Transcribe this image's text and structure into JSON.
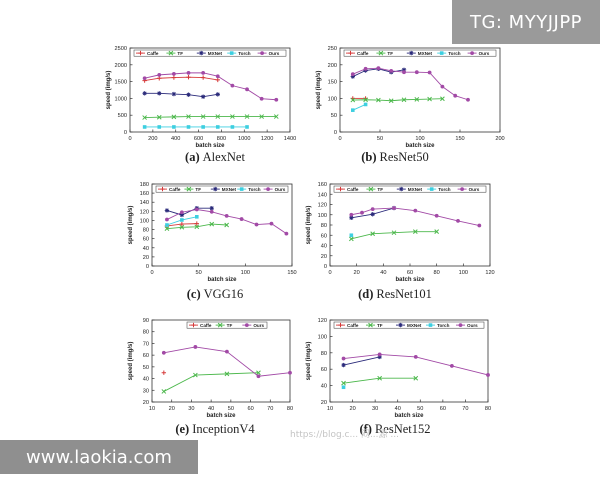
{
  "watermarks": {
    "top_right": "TG: MYYJJPP",
    "bottom_left": "www.laokia.com",
    "blog": "https://blog.c... 闷...源 ..."
  },
  "colors": {
    "Caffe": "#d63a3a",
    "TF": "#4cb84c",
    "MXNet": "#2a2a7a",
    "Torch": "#3dcfe0",
    "Ours": "#a24aa6"
  },
  "chart_data": [
    {
      "type": "line",
      "id": "alexnet",
      "caption_id": "(a)",
      "caption_name": "AlexNet",
      "xlabel": "batch size",
      "ylabel": "speed (img/s)",
      "xlim": [
        0,
        1400
      ],
      "ylim": [
        0,
        2500
      ],
      "xticks": [
        "0",
        "200",
        "400",
        "600",
        "800",
        "1000",
        "1200",
        "1400"
      ],
      "yticks": [
        "0",
        "500",
        "1000",
        "1500",
        "2000",
        "2500"
      ],
      "legend": [
        "Caffe",
        "TF",
        "MXNet",
        "Torch",
        "Ours"
      ],
      "series": [
        {
          "name": "Caffe",
          "x": [
            128,
            256,
            384,
            512,
            640,
            768
          ],
          "y": [
            1530,
            1600,
            1620,
            1630,
            1620,
            1550
          ]
        },
        {
          "name": "TF",
          "x": [
            128,
            256,
            384,
            512,
            640,
            768,
            896,
            1024,
            1152,
            1280
          ],
          "y": [
            430,
            440,
            450,
            460,
            460,
            460,
            460,
            460,
            460,
            460
          ]
        },
        {
          "name": "MXNet",
          "x": [
            128,
            256,
            384,
            512,
            640,
            768
          ],
          "y": [
            1150,
            1150,
            1130,
            1110,
            1050,
            1120
          ]
        },
        {
          "name": "Torch",
          "x": [
            128,
            256,
            384,
            512,
            640,
            768,
            896,
            1024
          ],
          "y": [
            150,
            150,
            150,
            150,
            150,
            150,
            150,
            150
          ]
        },
        {
          "name": "Ours",
          "x": [
            128,
            256,
            384,
            512,
            640,
            768,
            896,
            1024,
            1152,
            1280
          ],
          "y": [
            1600,
            1700,
            1730,
            1760,
            1760,
            1660,
            1380,
            1270,
            990,
            960
          ]
        }
      ]
    },
    {
      "type": "line",
      "id": "resnet50",
      "caption_id": "(b)",
      "caption_name": "ResNet50",
      "xlabel": "batch size",
      "ylabel": "speed (img/s)",
      "xlim": [
        0,
        200
      ],
      "ylim": [
        0,
        250
      ],
      "xticks": [
        "0",
        "50",
        "100",
        "150",
        "200"
      ],
      "yticks": [
        "0",
        "50",
        "100",
        "150",
        "200",
        "250"
      ],
      "legend": [
        "Caffe",
        "TF",
        "MXNet",
        "Torch",
        "Ours"
      ],
      "series": [
        {
          "name": "Caffe",
          "x": [
            16,
            32
          ],
          "y": [
            100,
            100
          ]
        },
        {
          "name": "TF",
          "x": [
            16,
            32,
            48,
            64,
            80,
            96,
            112,
            128
          ],
          "y": [
            95,
            96,
            95,
            93,
            96,
            97,
            98,
            99
          ]
        },
        {
          "name": "MXNet",
          "x": [
            16,
            32,
            48,
            64,
            80
          ],
          "y": [
            165,
            183,
            188,
            178,
            185
          ]
        },
        {
          "name": "Torch",
          "x": [
            16,
            32
          ],
          "y": [
            65,
            82
          ]
        },
        {
          "name": "Ours",
          "x": [
            16,
            32,
            48,
            64,
            80,
            96,
            112,
            128,
            144,
            160
          ],
          "y": [
            172,
            188,
            190,
            182,
            178,
            178,
            177,
            135,
            108,
            96
          ]
        }
      ]
    },
    {
      "type": "line",
      "id": "vgg16",
      "caption_id": "(c)",
      "caption_name": "VGG16",
      "xlabel": "batch size",
      "ylabel": "speed (img/s)",
      "xlim": [
        0,
        150
      ],
      "ylim": [
        0,
        180
      ],
      "xticks": [
        "0",
        "50",
        "100",
        "150"
      ],
      "yticks": [
        "0",
        "20",
        "40",
        "60",
        "80",
        "100",
        "120",
        "140",
        "160",
        "180"
      ],
      "legend": [
        "Caffe",
        "TF",
        "MXNet",
        "Torch",
        "Ours"
      ],
      "series": [
        {
          "name": "Caffe",
          "x": [
            16,
            32,
            48
          ],
          "y": [
            88,
            92,
            93
          ]
        },
        {
          "name": "TF",
          "x": [
            16,
            32,
            48,
            64,
            80
          ],
          "y": [
            82,
            85,
            86,
            92,
            90
          ]
        },
        {
          "name": "MXNet",
          "x": [
            16,
            32,
            48,
            64
          ],
          "y": [
            122,
            112,
            127,
            127
          ]
        },
        {
          "name": "Torch",
          "x": [
            16,
            32,
            48
          ],
          "y": [
            90,
            101,
            108
          ]
        },
        {
          "name": "Ours",
          "x": [
            16,
            32,
            48,
            64,
            80,
            96,
            112,
            128,
            144
          ],
          "y": [
            102,
            118,
            124,
            119,
            110,
            103,
            91,
            93,
            71
          ]
        }
      ]
    },
    {
      "type": "line",
      "id": "resnet101",
      "caption_id": "(d)",
      "caption_name": "ResNet101",
      "xlabel": "batch size",
      "ylabel": "speed (img/s)",
      "xlim": [
        0,
        120
      ],
      "ylim": [
        0,
        160
      ],
      "xticks": [
        "0",
        "20",
        "40",
        "60",
        "80",
        "100",
        "120"
      ],
      "yticks": [
        "0",
        "20",
        "40",
        "60",
        "80",
        "100",
        "120",
        "140",
        "160"
      ],
      "legend": [
        "Caffe",
        "TF",
        "MXNet",
        "Torch",
        "Ours"
      ],
      "series": [
        {
          "name": "TF",
          "x": [
            16,
            32,
            48,
            64,
            80
          ],
          "y": [
            53,
            63,
            65,
            67,
            67
          ]
        },
        {
          "name": "MXNet",
          "x": [
            16,
            32,
            48
          ],
          "y": [
            94,
            101,
            113
          ]
        },
        {
          "name": "Torch",
          "x": [
            16
          ],
          "y": [
            60
          ]
        },
        {
          "name": "Ours",
          "x": [
            16,
            24,
            32,
            48,
            64,
            80,
            96,
            112
          ],
          "y": [
            100,
            104,
            111,
            113,
            108,
            98,
            88,
            79
          ]
        }
      ]
    },
    {
      "type": "line",
      "id": "inceptionv4",
      "caption_id": "(e)",
      "caption_name": "InceptionV4",
      "xlabel": "batch size",
      "ylabel": "speed (img/s)",
      "xlim": [
        10,
        80
      ],
      "ylim": [
        20,
        90
      ],
      "xticks": [
        "10",
        "20",
        "30",
        "40",
        "50",
        "60",
        "70",
        "80"
      ],
      "yticks": [
        "20",
        "30",
        "40",
        "50",
        "60",
        "70",
        "80",
        "90"
      ],
      "legend": [
        "Caffe",
        "TF",
        "Ours"
      ],
      "series": [
        {
          "name": "Caffe",
          "x": [
            16
          ],
          "y": [
            45
          ]
        },
        {
          "name": "TF",
          "x": [
            16,
            32,
            48,
            64
          ],
          "y": [
            29,
            43,
            44,
            45
          ]
        },
        {
          "name": "Ours",
          "x": [
            16,
            32,
            48,
            64,
            80
          ],
          "y": [
            62,
            67,
            63,
            42,
            45
          ]
        }
      ]
    },
    {
      "type": "line",
      "id": "resnet152",
      "caption_id": "(f)",
      "caption_name": "ResNet152",
      "xlabel": "batch size",
      "ylabel": "speed (img/s)",
      "xlim": [
        10,
        80
      ],
      "ylim": [
        20,
        120
      ],
      "xticks": [
        "10",
        "20",
        "30",
        "40",
        "50",
        "60",
        "70",
        "80"
      ],
      "yticks": [
        "20",
        "40",
        "60",
        "80",
        "100",
        "120"
      ],
      "legend": [
        "Caffe",
        "TF",
        "MXNet",
        "Torch",
        "Ours"
      ],
      "series": [
        {
          "name": "TF",
          "x": [
            16,
            32,
            48
          ],
          "y": [
            43,
            49,
            49
          ]
        },
        {
          "name": "MXNet",
          "x": [
            16,
            32
          ],
          "y": [
            65,
            75
          ]
        },
        {
          "name": "Torch",
          "x": [
            16
          ],
          "y": [
            38
          ]
        },
        {
          "name": "Ours",
          "x": [
            16,
            32,
            48,
            64,
            80
          ],
          "y": [
            73,
            78,
            75,
            64,
            53
          ]
        }
      ]
    }
  ]
}
